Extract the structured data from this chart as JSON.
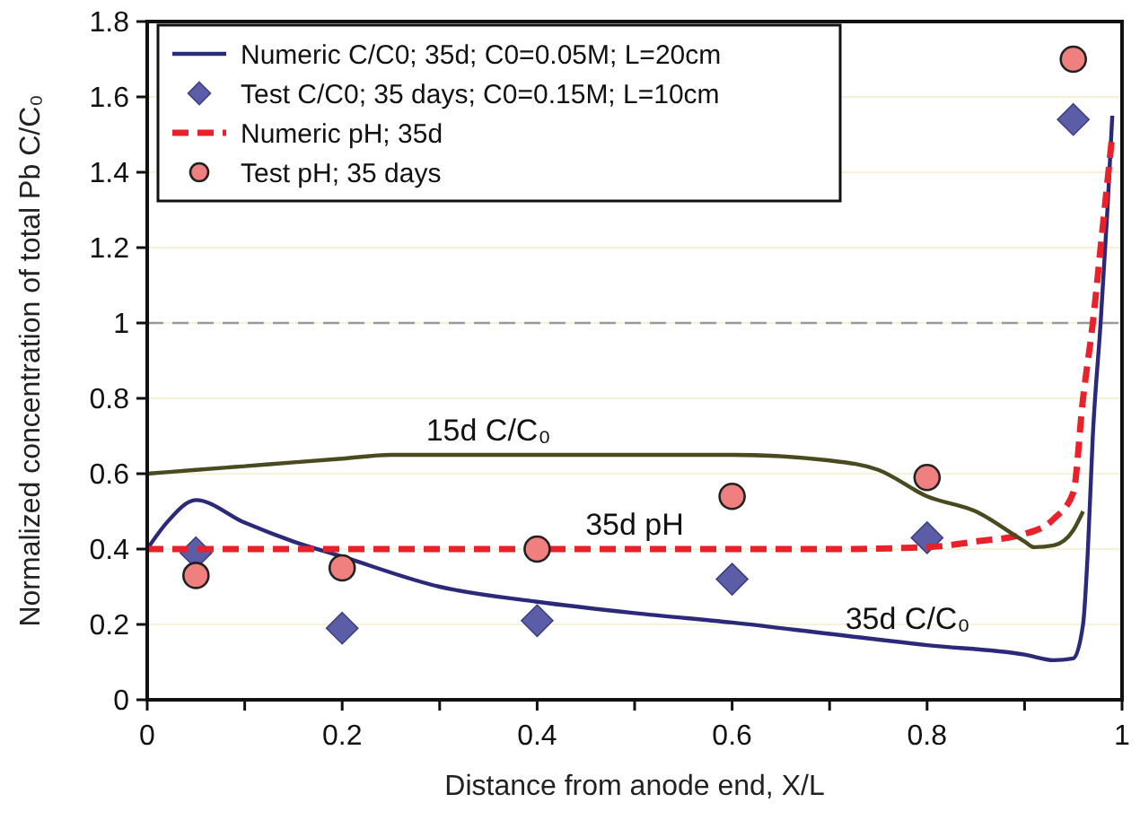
{
  "chart_data": {
    "type": "line",
    "xlabel": "Distance from anode end, X/L",
    "ylabel": "Normalized concentration of total Pb C/C₀",
    "xlim": [
      0,
      1
    ],
    "ylim": [
      0,
      1.8
    ],
    "xticks": [
      0,
      {
        "value": 0.1,
        "label": null
      },
      0.2,
      {
        "value": 0.3,
        "label": null
      },
      0.4,
      {
        "value": 0.5,
        "label": null
      },
      0.6,
      {
        "value": 0.7,
        "label": null
      },
      0.8,
      {
        "value": 0.9,
        "label": null
      },
      1
    ],
    "yticks": [
      0,
      0.2,
      0.4,
      0.6,
      0.8,
      1,
      1.2,
      1.4,
      1.6,
      1.8
    ],
    "grid": "y",
    "legend": "top left",
    "ref_lines": [
      {
        "axis": "y",
        "value": 1,
        "color": "#999999",
        "line_style": "dashed"
      }
    ],
    "annotations": [
      {
        "text": "15d C/C₀",
        "x": 0.35,
        "y": 0.65
      },
      {
        "text": "35d pH",
        "x": 0.5,
        "y": 0.4
      },
      {
        "text": "35d C/C₀",
        "x": 0.78,
        "y": 0.15
      }
    ],
    "series": [
      {
        "name": "Numeric C/C0; 35d; C0=0.05M; L=20cm",
        "type": "line",
        "color": "#2b2a7a",
        "line_style": "solid",
        "marker": "none",
        "x": [
          0,
          0.02,
          0.05,
          0.1,
          0.15,
          0.2,
          0.3,
          0.4,
          0.5,
          0.6,
          0.7,
          0.8,
          0.9,
          0.93,
          0.95,
          0.96,
          0.965,
          0.97,
          0.978,
          0.985,
          0.99
        ],
        "values": [
          0.4,
          0.47,
          0.53,
          0.47,
          0.42,
          0.38,
          0.3,
          0.26,
          0.23,
          0.205,
          0.175,
          0.145,
          0.12,
          0.105,
          0.11,
          0.2,
          0.4,
          0.7,
          1,
          1.3,
          1.55
        ]
      },
      {
        "name": "Test C/C0; 35 days; C0=0.15M; L=10cm",
        "type": "scatter",
        "color": "#5b5ea6",
        "marker": "diamond",
        "x": [
          0.05,
          0.2,
          0.4,
          0.6,
          0.8,
          0.95
        ],
        "values": [
          0.39,
          0.19,
          0.21,
          0.32,
          0.43,
          1.54
        ]
      },
      {
        "name": "Numeric pH; 35d",
        "type": "line",
        "color": "#e8212a",
        "line_style": "dashed",
        "marker": "none",
        "x": [
          0,
          0.2,
          0.4,
          0.6,
          0.7,
          0.8,
          0.85,
          0.9,
          0.93,
          0.95,
          0.96,
          0.97,
          0.98,
          0.99
        ],
        "values": [
          0.4,
          0.4,
          0.4,
          0.4,
          0.4,
          0.405,
          0.42,
          0.44,
          0.48,
          0.55,
          0.8,
          1,
          1.25,
          1.5
        ]
      },
      {
        "name": "Test pH; 35 days",
        "type": "scatter",
        "color": "#f07f80",
        "marker": "circle",
        "x": [
          0.05,
          0.2,
          0.4,
          0.6,
          0.8,
          0.95
        ],
        "values": [
          0.33,
          0.35,
          0.4,
          0.54,
          0.59,
          1.7
        ]
      },
      {
        "type": "line",
        "color": "#4a4a20",
        "line_style": "solid",
        "marker": "none",
        "x": [
          0,
          0.05,
          0.1,
          0.15,
          0.2,
          0.25,
          0.3,
          0.4,
          0.5,
          0.6,
          0.7,
          0.75,
          0.8,
          0.85,
          0.9,
          0.91,
          0.93,
          0.95,
          0.96
        ],
        "values": [
          0.6,
          0.61,
          0.62,
          0.63,
          0.64,
          0.65,
          0.65,
          0.65,
          0.65,
          0.65,
          0.635,
          0.61,
          0.54,
          0.5,
          0.42,
          0.405,
          0.41,
          0.45,
          0.5
        ]
      }
    ]
  }
}
